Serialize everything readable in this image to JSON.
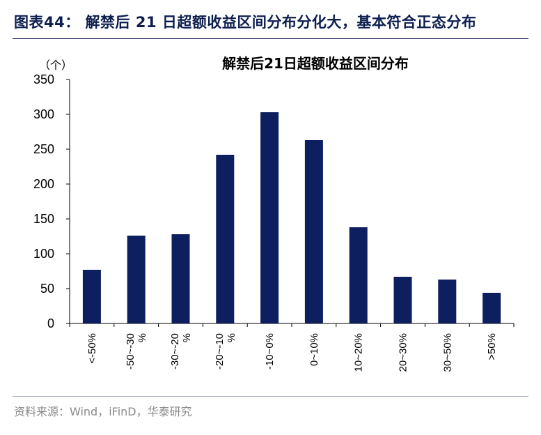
{
  "figure": {
    "title": "图表44：  解禁后 21 日超额收益区间分布分化大，基本符合正态分布",
    "source": "资料来源：Wind，iFinD，华泰研究"
  },
  "colors": {
    "bar": "#0d1f5e",
    "title": "#0d1f4f"
  },
  "chart_data": {
    "type": "bar",
    "title": "解禁后21日超额收益区间分布",
    "ylabel": "（个）",
    "xlabel": "",
    "categories": [
      "<-50%",
      "-50~-30%",
      "-30~-20%",
      "-20~-10%",
      "-10~0%",
      "0~10%",
      "10~20%",
      "20~30%",
      "30~50%",
      ">50%"
    ],
    "category_lines": [
      [
        "<-50%"
      ],
      [
        "-50~-30",
        "%"
      ],
      [
        "-30~-20",
        "%"
      ],
      [
        "-20~-10",
        "%"
      ],
      [
        "-10~0%"
      ],
      [
        "0~10%"
      ],
      [
        "10~20%"
      ],
      [
        "20~30%"
      ],
      [
        "30~50%"
      ],
      [
        ">50%"
      ]
    ],
    "values": [
      77,
      126,
      128,
      242,
      303,
      263,
      138,
      67,
      63,
      44
    ],
    "ylim": [
      0,
      350
    ],
    "yticks": [
      0,
      50,
      100,
      150,
      200,
      250,
      300,
      350
    ],
    "grid": false,
    "legend": "none"
  }
}
